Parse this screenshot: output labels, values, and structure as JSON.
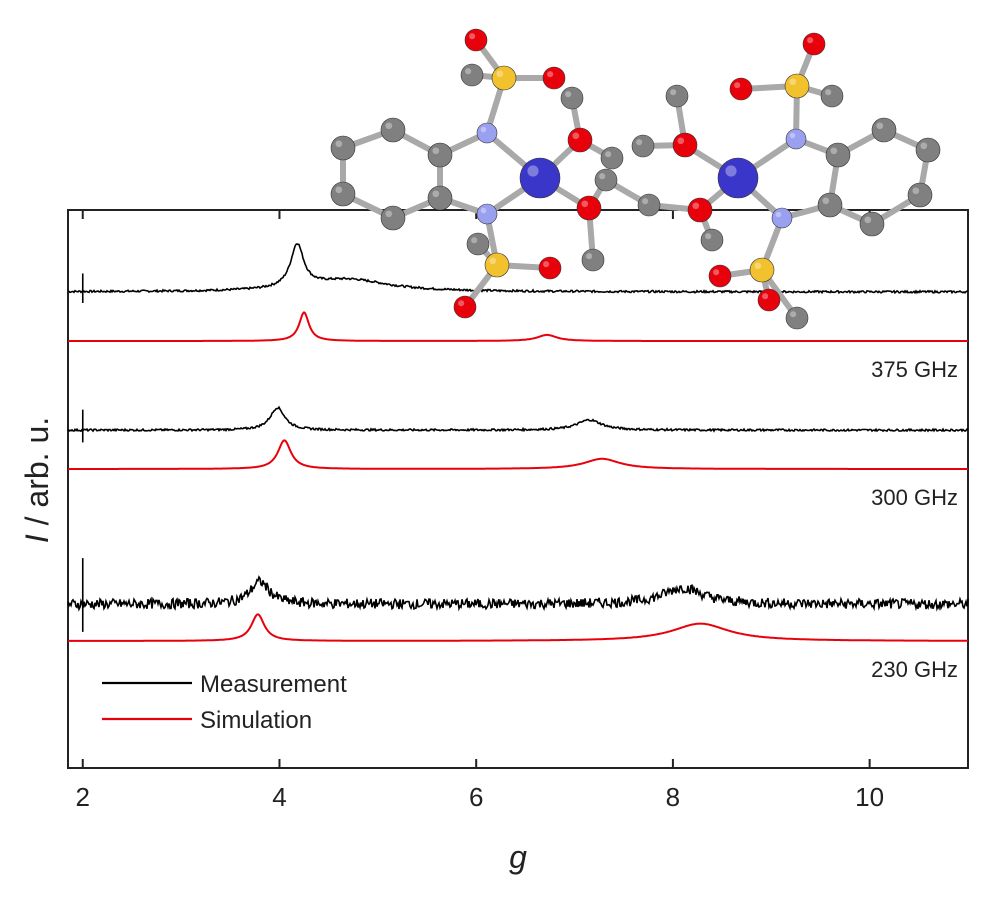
{
  "chart_data": {
    "type": "line",
    "title": "",
    "xlabel": "g",
    "ylabel_main": "I",
    "ylabel_rest": " / arb. u.",
    "xlim": [
      1.85,
      11.0
    ],
    "xticks": [
      2,
      4,
      6,
      8,
      10
    ],
    "xtick_labels": [
      "2",
      "4",
      "6",
      "8",
      "10"
    ],
    "grid": false,
    "legend_position": "bottom-left",
    "legend": [
      {
        "key": "measurement",
        "label": "Measurement",
        "color": "#000000"
      },
      {
        "key": "simulation",
        "label": "Simulation",
        "color": "#e8000b"
      }
    ],
    "panels": [
      {
        "frequency": "375 GHz",
        "offset": 3.05,
        "measurement": {
          "baseline": 0.0,
          "peaks": [
            {
              "g": 4.18,
              "amp": 0.42,
              "width": 0.08
            },
            {
              "g": 4.7,
              "amp": 0.12,
              "width": 0.5
            }
          ],
          "noise": 0.01
        },
        "simulation": {
          "baseline": -0.48,
          "peaks": [
            {
              "g": 4.25,
              "amp": 0.28,
              "width": 0.06
            },
            {
              "g": 6.72,
              "amp": 0.06,
              "width": 0.12
            }
          ]
        }
      },
      {
        "frequency": "300 GHz",
        "offset": 1.7,
        "measurement": {
          "baseline": 0.0,
          "peaks": [
            {
              "g": 3.98,
              "amp": 0.22,
              "width": 0.09
            },
            {
              "g": 7.15,
              "amp": 0.1,
              "width": 0.15
            }
          ],
          "noise": 0.01
        },
        "simulation": {
          "baseline": -0.38,
          "peaks": [
            {
              "g": 4.05,
              "amp": 0.28,
              "width": 0.08
            },
            {
              "g": 7.28,
              "amp": 0.1,
              "width": 0.22
            }
          ]
        }
      },
      {
        "frequency": "230 GHz",
        "offset": 0.0,
        "measurement": {
          "baseline": 0.0,
          "peaks": [
            {
              "g": 3.8,
              "amp": 0.22,
              "width": 0.12
            },
            {
              "g": 8.1,
              "amp": 0.16,
              "width": 0.25
            }
          ],
          "noise": 0.05
        },
        "simulation": {
          "baseline": -0.36,
          "peaks": [
            {
              "g": 3.78,
              "amp": 0.26,
              "width": 0.08
            },
            {
              "g": 8.28,
              "amp": 0.17,
              "width": 0.35
            }
          ]
        }
      }
    ]
  },
  "molecule_colors": {
    "metal": "#3a36c9",
    "nitrogen": "#9aa0f0",
    "oxygen": "#e8000b",
    "sulfur": "#f2c12e",
    "carbon": "#808080",
    "bond": "#a9a9a9"
  }
}
